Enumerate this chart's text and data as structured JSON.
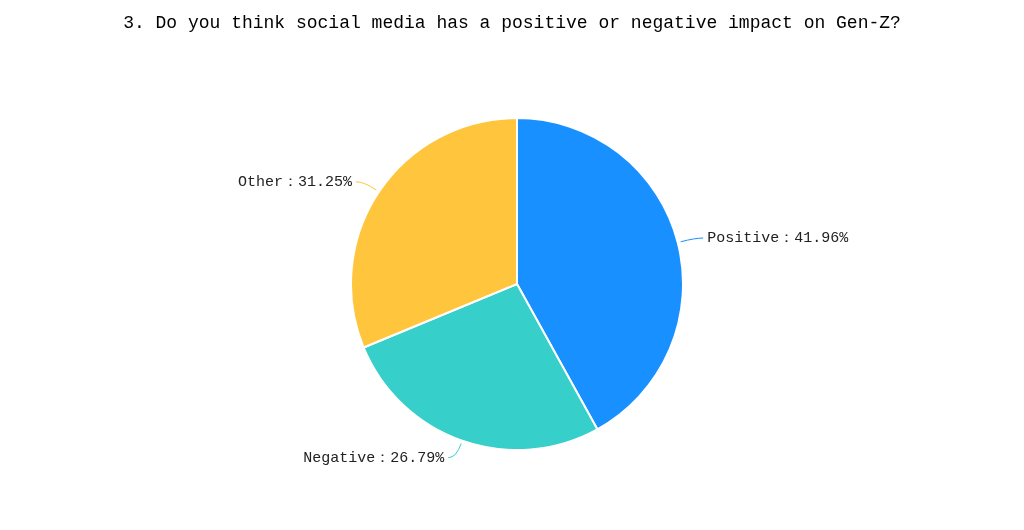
{
  "chart_data": {
    "type": "pie",
    "title": "3. Do you think social media has a positive or negative impact on Gen-Z?",
    "categories": [
      "Positive",
      "Negative",
      "Other"
    ],
    "values": [
      41.96,
      26.79,
      31.25
    ],
    "value_labels": [
      "41.96%",
      "26.79%",
      "31.25%"
    ],
    "colors": [
      "#1890ff",
      "#36cfc9",
      "#ffc53d"
    ],
    "legend": false
  }
}
